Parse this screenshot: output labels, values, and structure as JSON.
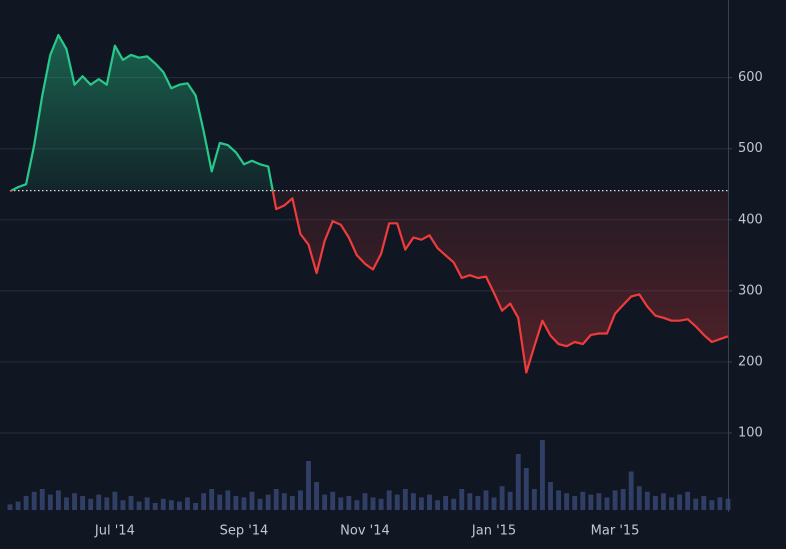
{
  "chart_data": {
    "type": "baseline",
    "categories": [
      null,
      null,
      null,
      null,
      null,
      null,
      null,
      null,
      null,
      null,
      null,
      null,
      null,
      "Jul '14",
      null,
      null,
      null,
      null,
      null,
      null,
      null,
      null,
      null,
      null,
      null,
      null,
      null,
      null,
      null,
      "Sep '14",
      null,
      null,
      null,
      null,
      null,
      null,
      null,
      null,
      null,
      null,
      null,
      null,
      null,
      null,
      "Nov '14",
      null,
      null,
      null,
      null,
      null,
      null,
      null,
      null,
      null,
      null,
      null,
      null,
      null,
      null,
      null,
      "Jan '15",
      null,
      null,
      null,
      null,
      null,
      null,
      null,
      null,
      null,
      null,
      null,
      null,
      null,
      null,
      "Mar '15",
      null,
      null,
      null,
      null,
      null,
      null,
      null,
      null,
      null,
      null,
      null,
      null,
      null,
      null
    ],
    "values": [
      440,
      446,
      450,
      505,
      575,
      632,
      660,
      640,
      590,
      602,
      590,
      598,
      590,
      645,
      625,
      632,
      628,
      630,
      620,
      608,
      585,
      590,
      592,
      575,
      525,
      468,
      508,
      505,
      495,
      478,
      483,
      478,
      475,
      415,
      420,
      430,
      380,
      365,
      325,
      370,
      398,
      393,
      375,
      350,
      338,
      330,
      352,
      395,
      395,
      358,
      375,
      372,
      378,
      360,
      350,
      340,
      318,
      322,
      318,
      320,
      297,
      272,
      282,
      262,
      185,
      222,
      258,
      237,
      225,
      222,
      228,
      225,
      238,
      240,
      240,
      268,
      280,
      292,
      295,
      278,
      265,
      262,
      258,
      258,
      260,
      250,
      238,
      228,
      232,
      236
    ],
    "volume": [
      8,
      12,
      20,
      26,
      30,
      22,
      28,
      18,
      24,
      20,
      16,
      22,
      18,
      26,
      14,
      20,
      12,
      18,
      10,
      16,
      14,
      12,
      18,
      10,
      24,
      30,
      22,
      28,
      20,
      18,
      26,
      16,
      22,
      30,
      24,
      20,
      28,
      70,
      40,
      22,
      26,
      18,
      20,
      14,
      24,
      18,
      16,
      28,
      22,
      30,
      24,
      18,
      22,
      14,
      20,
      16,
      30,
      24,
      20,
      28,
      18,
      34,
      26,
      80,
      60,
      30,
      100,
      40,
      28,
      24,
      20,
      26,
      22,
      24,
      18,
      28,
      30,
      55,
      34,
      26,
      20,
      24,
      18,
      22,
      26,
      16,
      20,
      14,
      18,
      16
    ],
    "volume_lim": [
      0,
      100
    ],
    "baseline": 441,
    "up_color": "#26c98a",
    "down_color": "#ef3b3b",
    "volume_color": "#3a4a78",
    "ylim": [
      0,
      698
    ],
    "yticks": [
      100,
      200,
      300,
      400,
      500,
      600
    ],
    "grid": true
  }
}
